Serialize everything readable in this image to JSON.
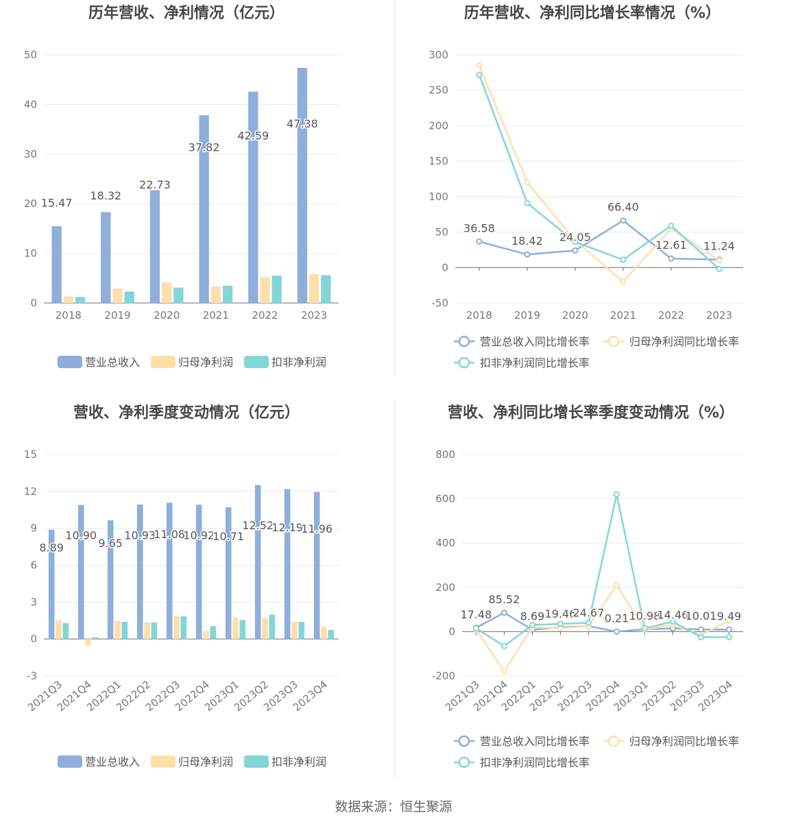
{
  "source": "数据来源：恒生聚源",
  "colors": {
    "revenue": "#8eaedb",
    "parent": "#fedfaa",
    "deducted": "#82d6d8",
    "grid": "#e6e9f0",
    "axis": "#6e7079",
    "text": "#555555",
    "title": "#464646"
  },
  "chart_data": [
    {
      "type": "bar",
      "title": "历年营收、净利情况（亿元）",
      "categories": [
        "2018",
        "2019",
        "2020",
        "2021",
        "2022",
        "2023"
      ],
      "ylim": [
        0,
        50
      ],
      "yticks": [
        0,
        10,
        20,
        30,
        40,
        50
      ],
      "grid": true,
      "legend": "bottom",
      "series": [
        {
          "name": "营业总收入",
          "values": [
            15.47,
            18.32,
            22.73,
            37.82,
            42.59,
            47.38
          ],
          "labels": [
            "15.47",
            "18.32",
            "22.73",
            "37.82",
            "42.59",
            "47.38"
          ]
        },
        {
          "name": "归母净利润",
          "values": [
            1.3,
            2.9,
            4.1,
            3.3,
            5.2,
            5.8
          ]
        },
        {
          "name": "扣非净利润",
          "values": [
            1.2,
            2.3,
            3.1,
            3.5,
            5.5,
            5.6
          ]
        }
      ]
    },
    {
      "type": "line",
      "title": "历年营收、净利同比增长率情况（%）",
      "categories": [
        "2018",
        "2019",
        "2020",
        "2021",
        "2022",
        "2023"
      ],
      "ylim": [
        -50,
        300
      ],
      "yticks": [
        -50,
        0,
        50,
        100,
        150,
        200,
        250,
        300
      ],
      "grid": true,
      "legend": "bottom",
      "series": [
        {
          "name": "营业总收入同比增长率",
          "values": [
            36.58,
            18.42,
            24.05,
            66.4,
            12.61,
            11.24
          ],
          "labels": [
            "36.58",
            "18.42",
            "24.05",
            "66.40",
            "12.61",
            "11.24"
          ]
        },
        {
          "name": "归母净利润同比增长率",
          "values": [
            285,
            120,
            38,
            -20,
            55,
            10
          ]
        },
        {
          "name": "扣非净利润同比增长率",
          "values": [
            272,
            91,
            36,
            11,
            59,
            -2
          ]
        }
      ]
    },
    {
      "type": "bar",
      "title": "营收、净利季度变动情况（亿元）",
      "categories": [
        "2021Q3",
        "2021Q4",
        "2022Q1",
        "2022Q2",
        "2022Q3",
        "2022Q4",
        "2023Q1",
        "2023Q2",
        "2023Q3",
        "2023Q4"
      ],
      "ylim": [
        -3,
        15
      ],
      "yticks": [
        -3,
        0,
        3,
        6,
        9,
        12,
        15
      ],
      "grid": true,
      "legend": "bottom",
      "series": [
        {
          "name": "营业总收入",
          "values": [
            8.89,
            10.9,
            9.65,
            10.93,
            11.08,
            10.92,
            10.71,
            12.52,
            12.19,
            11.96
          ],
          "labels": [
            "8.89",
            "10.90",
            "9.65",
            "10.93",
            "11.08",
            "10.92",
            "10.71",
            "12.52",
            "12.19",
            "11.96"
          ]
        },
        {
          "name": "归母净利润",
          "values": [
            1.5,
            -0.55,
            1.5,
            1.35,
            1.85,
            0.65,
            1.75,
            1.7,
            1.4,
            1.0
          ]
        },
        {
          "name": "扣非净利润",
          "values": [
            1.3,
            0.15,
            1.4,
            1.35,
            1.85,
            1.05,
            1.55,
            2.0,
            1.4,
            0.75
          ]
        }
      ]
    },
    {
      "type": "line",
      "title": "营收、净利同比增长率季度变动情况（%）",
      "categories": [
        "2021Q3",
        "2021Q4",
        "2022Q1",
        "2022Q2",
        "2022Q3",
        "2022Q4",
        "2023Q1",
        "2023Q2",
        "2023Q3",
        "2023Q4"
      ],
      "ylim": [
        -200,
        800
      ],
      "yticks": [
        -200,
        0,
        200,
        400,
        600,
        800
      ],
      "grid": true,
      "legend": "bottom",
      "series": [
        {
          "name": "营业总收入同比增长率",
          "values": [
            17.48,
            85.52,
            8.69,
            19.46,
            24.67,
            0.21,
            10.98,
            14.46,
            10.01,
            9.49
          ],
          "labels": [
            "17.48",
            "85.52",
            "8.69",
            "19.46",
            "24.67",
            "0.21",
            "10.98",
            "14.46",
            "10.01",
            "9.49"
          ]
        },
        {
          "name": "归母净利润同比增长率",
          "values": [
            10,
            -180,
            20,
            15,
            25,
            210,
            10,
            30,
            -15,
            50
          ]
        },
        {
          "name": "扣非净利润同比增长率",
          "values": [
            15,
            -65,
            30,
            35,
            40,
            620,
            15,
            45,
            -25,
            -25
          ]
        }
      ]
    }
  ]
}
